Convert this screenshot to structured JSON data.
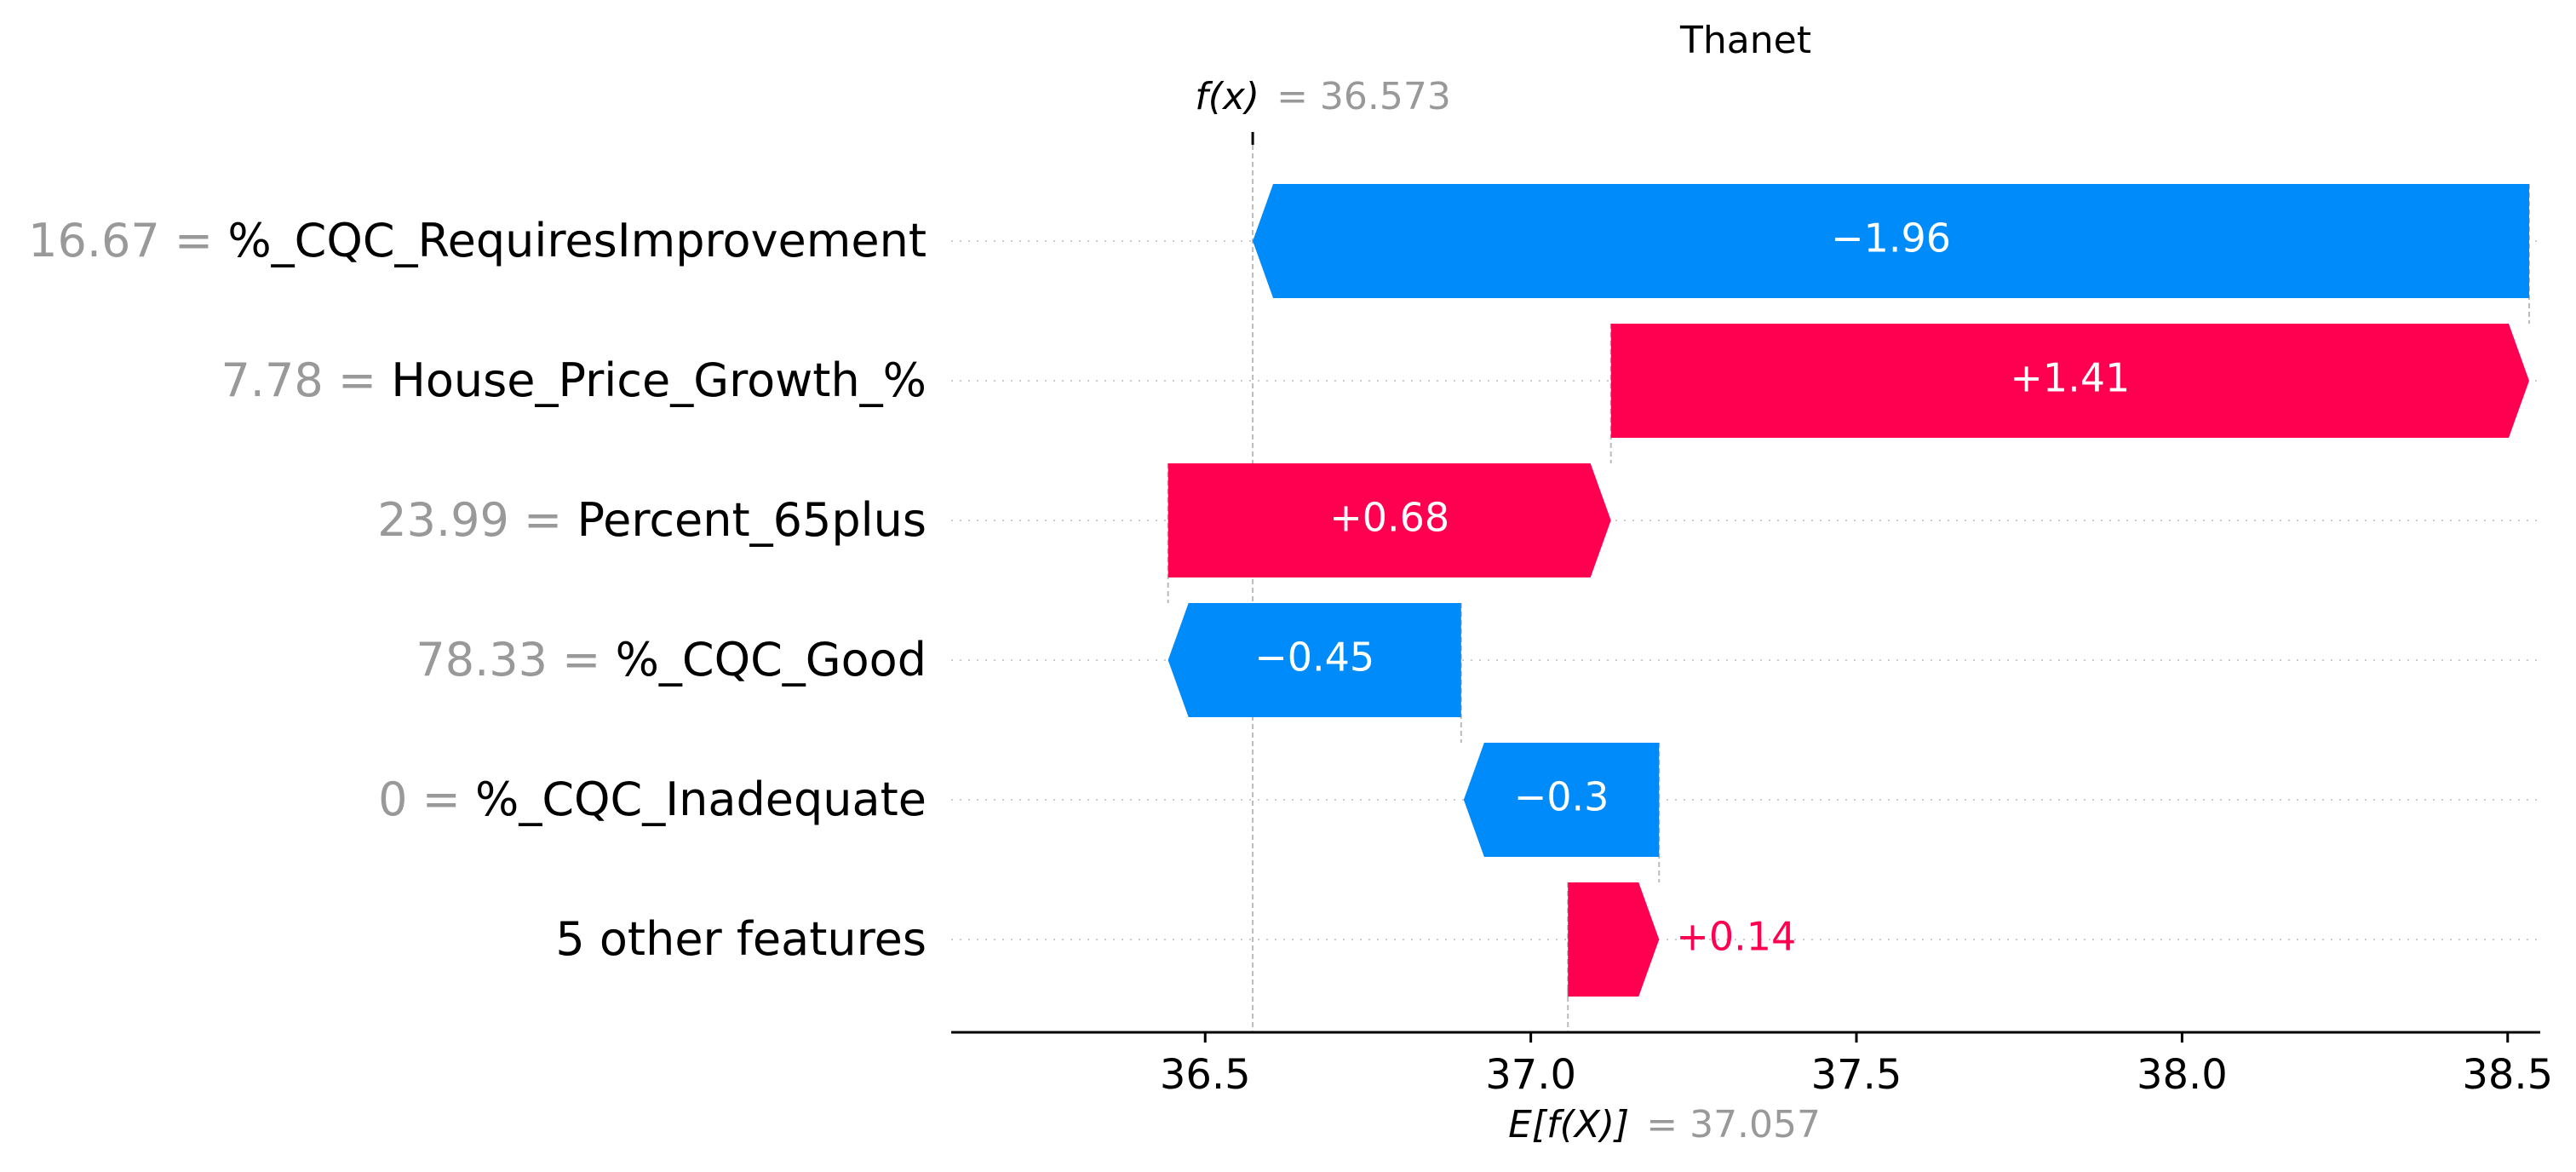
{
  "chart_data": {
    "type": "waterfall",
    "title": "Thanet",
    "fx_label": "f(x)",
    "fx_value_text": "= 36.573",
    "fx": 36.573,
    "efx_label": "E[f(X)]",
    "efx_value_text": "= 37.057",
    "efx": 37.057,
    "xlim": [
      36.11,
      38.55
    ],
    "x_ticks": [
      36.5,
      37.0,
      37.5,
      38.0,
      38.5
    ],
    "x_tick_labels": [
      "36.5",
      "37.0",
      "37.5",
      "38.0",
      "38.5"
    ],
    "grid": false,
    "features": [
      {
        "value_text": "16.67",
        "eq": "=",
        "name": "%_CQC_RequiresImprovement",
        "contribution": -1.96,
        "label": "−1.96",
        "start": 38.533
      },
      {
        "value_text": "7.78",
        "eq": "=",
        "name": "House_Price_Growth_%",
        "contribution": 1.41,
        "label": "+1.41",
        "start": 37.123
      },
      {
        "value_text": "23.99",
        "eq": "=",
        "name": "Percent_65plus",
        "contribution": 0.68,
        "label": "+0.68",
        "start": 36.443
      },
      {
        "value_text": "78.33",
        "eq": "=",
        "name": "%_CQC_Good",
        "contribution": -0.45,
        "label": "−0.45",
        "start": 36.893
      },
      {
        "value_text": "0",
        "eq": "=",
        "name": "%_CQC_Inadequate",
        "contribution": -0.3,
        "label": "−0.3",
        "start": 37.197
      },
      {
        "value_text": "",
        "eq": "",
        "name": "5 other features",
        "contribution": 0.14,
        "label": "+0.14",
        "start": 37.057
      }
    ],
    "colors": {
      "positive": "#ff0051",
      "negative": "#008bfb",
      "value_grey": "#999999",
      "text": "#000000"
    }
  }
}
